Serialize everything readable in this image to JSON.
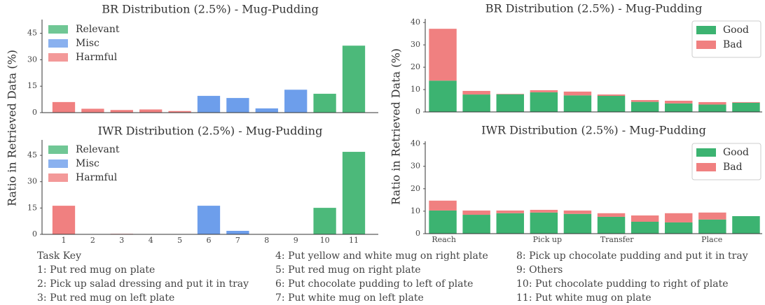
{
  "chart_data": [
    {
      "type": "bar",
      "title": "BR Distribution (2.5%) - Mug-Pudding",
      "ylabel": "Ratio in Retrieved Data (%)",
      "categories": [
        null,
        null,
        null,
        null,
        null,
        null,
        null,
        null,
        null,
        null,
        null
      ],
      "series": [
        {
          "name": "Relevant",
          "color": "#4cb97a",
          "values": [
            null,
            null,
            null,
            null,
            null,
            null,
            null,
            null,
            null,
            10.7,
            38
          ]
        },
        {
          "name": "Misc",
          "color": "#6d9eeb",
          "values": [
            null,
            null,
            null,
            null,
            null,
            9.5,
            8.3,
            2.4,
            13,
            null,
            null
          ]
        },
        {
          "name": "Harmful",
          "color": "#f08080",
          "values": [
            6,
            2.2,
            1.5,
            1.8,
            0.9,
            null,
            null,
            null,
            null,
            null,
            null
          ]
        }
      ],
      "ylim": [
        0,
        52
      ],
      "yticks": [
        0,
        15,
        30,
        45
      ],
      "grid": false,
      "stacked": false,
      "legend": "upper left"
    },
    {
      "type": "bar",
      "title": "IWR Distribution (2.5%) - Mug-Pudding",
      "categories": [
        "1",
        "2",
        "3",
        "4",
        "5",
        "6",
        "7",
        "8",
        "9",
        "10",
        "11"
      ],
      "series": [
        {
          "name": "Relevant",
          "color": "#4cb97a",
          "values": [
            null,
            null,
            null,
            null,
            null,
            null,
            null,
            null,
            null,
            15.1,
            47
          ]
        },
        {
          "name": "Misc",
          "color": "#6d9eeb",
          "values": [
            null,
            null,
            null,
            null,
            null,
            16.3,
            2,
            0,
            0,
            null,
            null
          ]
        },
        {
          "name": "Harmful",
          "color": "#f08080",
          "values": [
            16.3,
            0,
            0.3,
            0,
            0,
            null,
            null,
            null,
            null,
            null,
            null
          ]
        }
      ],
      "ylim": [
        0,
        53
      ],
      "yticks": [
        0,
        15,
        30,
        45
      ],
      "grid": false,
      "stacked": false,
      "legend": "upper left"
    },
    {
      "type": "bar",
      "title": "BR Distribution (2.5%) - Mug-Pudding",
      "ylabel": "Ratio in Retrieved Data (%)",
      "categories": [
        null,
        null,
        null,
        null,
        null,
        null,
        null,
        null,
        null,
        null
      ],
      "series": [
        {
          "name": "Good",
          "color": "#3cb371",
          "values": [
            14,
            7.8,
            7.9,
            8.8,
            7.4,
            7.2,
            4.5,
            3.8,
            3.3,
            4.1
          ]
        },
        {
          "name": "Bad",
          "color": "#f08080",
          "values": [
            23.2,
            1.6,
            0.2,
            0.9,
            1.7,
            0.6,
            0.8,
            1.2,
            1.1,
            0.3
          ]
        }
      ],
      "ylim": [
        0,
        41
      ],
      "yticks": [
        0,
        10,
        20,
        30,
        40
      ],
      "grid": false,
      "stacked": true,
      "legend": "upper right"
    },
    {
      "type": "bar",
      "title": "IWR Distribution (2.5%) - Mug-Pudding",
      "categories": [
        "Reach",
        null,
        null,
        "Pick up",
        null,
        "Transfer",
        null,
        null,
        "Place",
        null
      ],
      "series": [
        {
          "name": "Good",
          "color": "#3cb371",
          "values": [
            10.3,
            8.4,
            9.1,
            9.4,
            8.8,
            7.5,
            5.3,
            5,
            6.3,
            7.8
          ]
        },
        {
          "name": "Bad",
          "color": "#f08080",
          "values": [
            4.4,
            1.9,
            1.2,
            1.2,
            1.5,
            1.6,
            2.8,
            4.1,
            3.1,
            0
          ]
        }
      ],
      "ylim": [
        0,
        40.5
      ],
      "yticks": [
        0,
        10,
        20,
        30,
        40
      ],
      "grid": false,
      "stacked": true,
      "legend": "upper right"
    }
  ],
  "task_key": {
    "title": "Task Key",
    "items": [
      "1: Put red mug on plate",
      "2: Pick up salad dressing and put it in tray",
      "3: Put red mug on left plate",
      "4: Put yellow and white mug on right plate",
      "5: Put red mug on right plate",
      "6: Put chocolate pudding to left of plate",
      "7: Put white mug on left plate",
      "8: Pick up chocolate pudding and put it in tray",
      "9: Others",
      "10: Put chocolate pudding to right of plate",
      "11: Put white mug on plate"
    ]
  }
}
